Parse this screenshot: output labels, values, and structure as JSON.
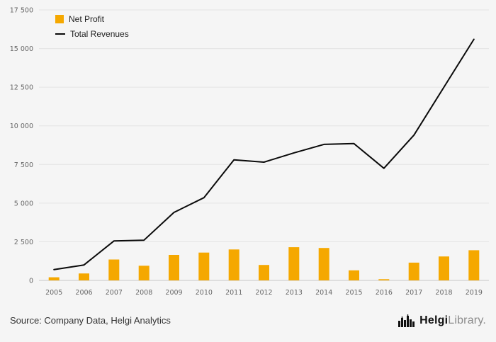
{
  "chart_data": {
    "type": "bar",
    "subtype": "bar-and-line-combo",
    "title": "",
    "categories": [
      "2005",
      "2006",
      "2007",
      "2008",
      "2009",
      "2010",
      "2011",
      "2012",
      "2013",
      "2014",
      "2015",
      "2016",
      "2017",
      "2018",
      "2019"
    ],
    "series": [
      {
        "name": "Net Profit",
        "type": "bar",
        "color": "#F5A800",
        "values": [
          200,
          450,
          1350,
          950,
          1650,
          1800,
          2000,
          1000,
          2150,
          2100,
          650,
          80,
          1150,
          1550,
          1950
        ]
      },
      {
        "name": "Total Revenues",
        "type": "line",
        "color": "#0a0a0a",
        "values": [
          700,
          1000,
          2550,
          2600,
          4400,
          5350,
          7800,
          7650,
          8250,
          8800,
          8850,
          7250,
          9400,
          12500,
          15600
        ]
      }
    ],
    "xlabel": "",
    "ylabel": "",
    "ylim": [
      0,
      17500
    ],
    "ytick_step": 2500,
    "ytick_labels": [
      "0",
      "2 500",
      "5 000",
      "7 500",
      "10 000",
      "12 500",
      "15 000",
      "17 500"
    ],
    "grid": true,
    "legend_position": "top-left",
    "background_color": "#f5f5f5",
    "gridline_color": "#e4e4e4"
  },
  "footer": {
    "source": "Source: Company Data, Helgi Analytics",
    "logo_bold": "Helgi",
    "logo_light": "Library."
  }
}
